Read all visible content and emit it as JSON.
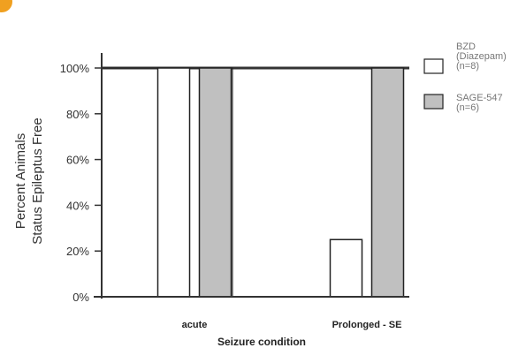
{
  "chart_data": {
    "type": "bar",
    "categories": [
      "acute",
      "Prolonged - SE"
    ],
    "series": [
      {
        "name_lines": [
          "BZD",
          "(Diazepam)",
          "(n=8)"
        ],
        "values": [
          100,
          25
        ],
        "color": "#ffffff"
      },
      {
        "name_lines": [
          "SAGE-547",
          "(n=6)"
        ],
        "values": [
          100,
          100
        ],
        "color": "#c0c0c0"
      }
    ],
    "ylim": [
      0,
      100
    ],
    "yticks": [
      "0%",
      "20%",
      "40%",
      "60%",
      "80%",
      "100%"
    ],
    "ylabel_lines": [
      "Percent Animals",
      "Status Epileptus Free"
    ],
    "xlabel": "Seizure condition",
    "grid": false,
    "legend_position": "right"
  },
  "colors": {
    "accent": "#f0a020",
    "axis": "#333333",
    "bar_stroke": "#222222"
  }
}
